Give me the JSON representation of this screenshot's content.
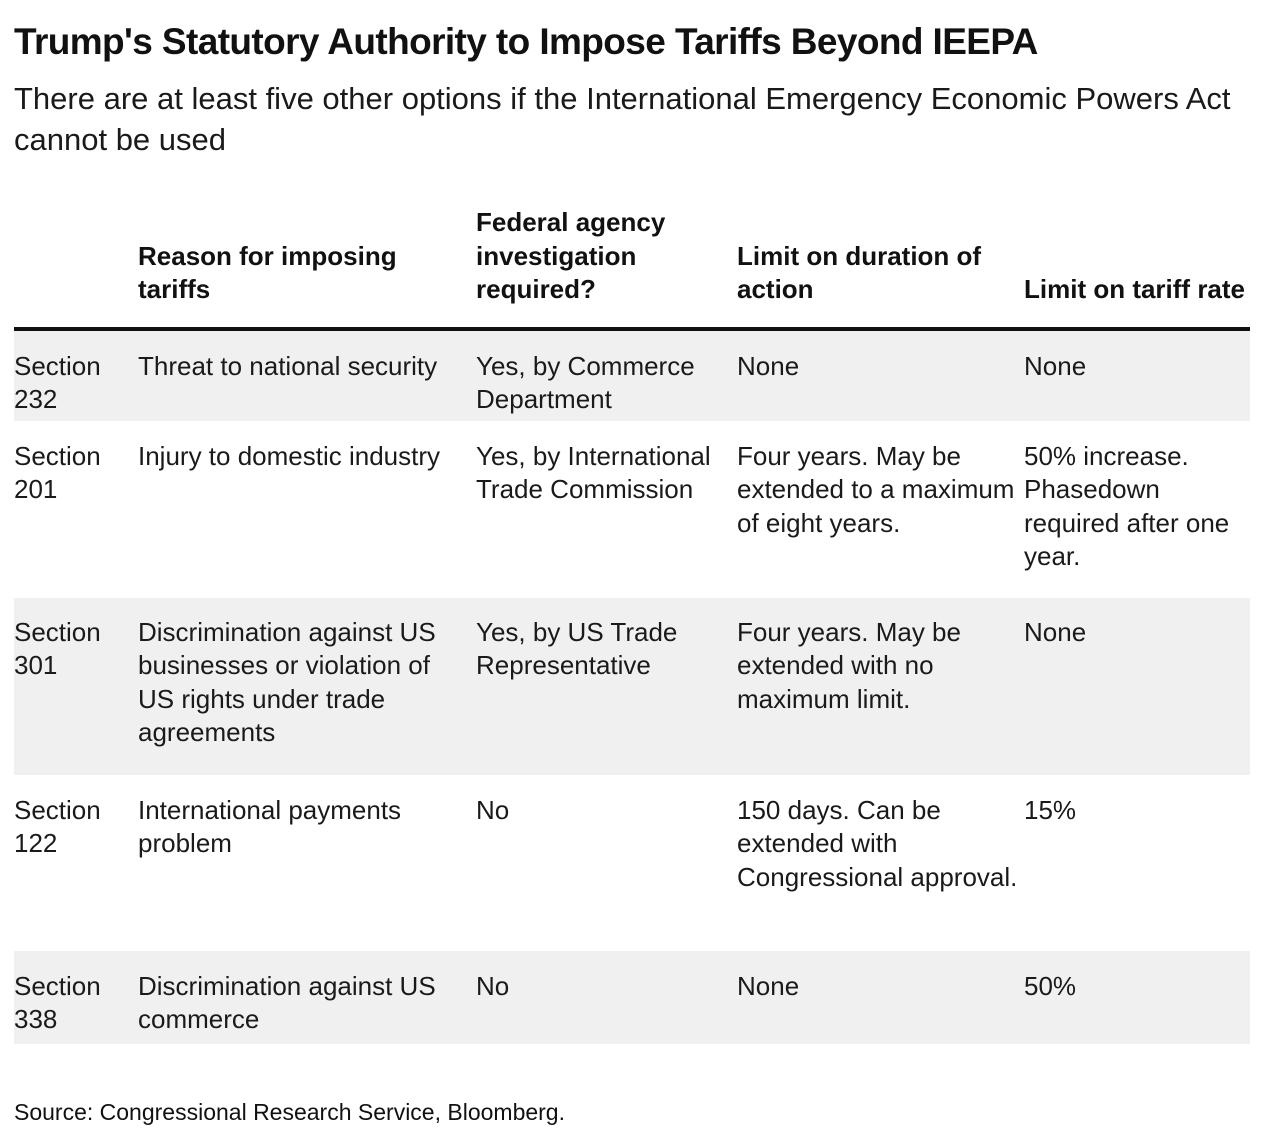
{
  "title": "Trump's Statutory Authority to Impose Tariffs Beyond IEEPA",
  "subtitle": "There are at least five other options if the International Emergency Economic Powers Act cannot be used",
  "chart_data": {
    "type": "table",
    "columns": [
      "",
      "Reason for imposing tariffs",
      "Federal agency investigation required?",
      "Limit on duration of action",
      "Limit on tariff rate"
    ],
    "rows": [
      [
        "Section 232",
        "Threat to national security",
        "Yes, by Commerce Department",
        "None",
        "None"
      ],
      [
        "Section 201",
        "Injury to domestic industry",
        "Yes, by International Trade Commission",
        "Four years. May be extended to a maximum of eight years.",
        "50% increase. Phasedown required after one year."
      ],
      [
        "Section 301",
        "Discrimination against US businesses or violation of US rights under trade agreements",
        "Yes, by US Trade Representative",
        "Four years. May be extended with no maximum limit.",
        "None"
      ],
      [
        "Section 122",
        "International payments problem",
        "No",
        "150 days. Can be extended with Congressional approval.",
        "15%"
      ],
      [
        "Section 338",
        "Discrimination against US commerce",
        "No",
        "None",
        "50%"
      ]
    ],
    "row_shading": [
      "#f0f0f0",
      "#ffffff",
      "#f0f0f0",
      "#ffffff",
      "#f0f0f0"
    ]
  },
  "source": "Source: Congressional Research Service, Bloomberg."
}
